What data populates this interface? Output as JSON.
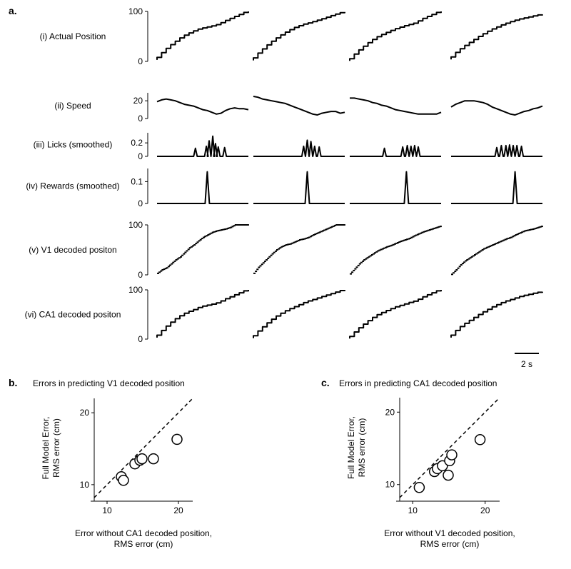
{
  "panel_labels": {
    "a": "a.",
    "b": "b.",
    "c": "c."
  },
  "scale_bar": {
    "label": "2 s",
    "seconds": 2
  },
  "chart_data": [
    {
      "type": "line",
      "id": "a",
      "trials": 4,
      "rows": [
        {
          "key": "position",
          "label": "(i) Actual Position",
          "style": "step",
          "yticks": [
            0,
            100
          ],
          "ylim": [
            0,
            100
          ],
          "series": [
            [
              3,
              13,
              22,
              30,
              37,
              44,
              50,
              55,
              59,
              63,
              66,
              68,
              70,
              72,
              75,
              80,
              84,
              88,
              92,
              96,
              100
            ],
            [
              2,
              12,
              21,
              29,
              37,
              44,
              50,
              56,
              61,
              66,
              70,
              73,
              76,
              78,
              81,
              84,
              87,
              90,
              93,
              96,
              99
            ],
            [
              1,
              10,
              19,
              27,
              34,
              41,
              47,
              52,
              56,
              60,
              64,
              67,
              70,
              73,
              75,
              78,
              84,
              88,
              92,
              96,
              100
            ],
            [
              4,
              14,
              22,
              29,
              35,
              41,
              47,
              53,
              58,
              63,
              67,
              71,
              75,
              78,
              81,
              84,
              86,
              88,
              90,
              92,
              94
            ]
          ]
        },
        {
          "key": "speed",
          "label": "(ii) Speed",
          "style": "line",
          "yticks": [
            0,
            20
          ],
          "ylim": [
            0,
            29
          ],
          "series": [
            [
              19,
              21,
              22,
              21,
              20,
              18,
              16,
              15,
              14,
              12,
              10,
              9,
              7,
              5,
              6,
              9,
              11,
              12,
              11,
              11,
              10
            ],
            [
              25,
              24,
              22,
              21,
              20,
              19,
              18,
              17,
              15,
              13,
              11,
              9,
              7,
              5,
              4,
              6,
              7,
              8,
              8,
              6,
              7
            ],
            [
              23,
              23,
              22,
              21,
              20,
              18,
              17,
              15,
              14,
              12,
              10,
              9,
              8,
              7,
              6,
              5,
              5,
              5,
              5,
              5,
              7
            ],
            [
              13,
              16,
              18,
              20,
              20,
              20,
              19,
              18,
              16,
              13,
              11,
              9,
              7,
              5,
              4,
              6,
              8,
              9,
              11,
              12,
              14
            ]
          ]
        },
        {
          "key": "licks",
          "label": "(iii) Licks (smoothed)",
          "style": "peaks",
          "yticks": [
            0,
            0.2
          ],
          "ylim": [
            0,
            0.35
          ],
          "series": [
            [
              [
                0.42,
                0.12
              ],
              [
                0.54,
                0.15
              ],
              [
                0.57,
                0.23
              ],
              [
                0.61,
                0.3
              ],
              [
                0.64,
                0.19
              ],
              [
                0.67,
                0.14
              ],
              [
                0.74,
                0.13
              ]
            ],
            [
              [
                0.55,
                0.15
              ],
              [
                0.59,
                0.24
              ],
              [
                0.63,
                0.22
              ],
              [
                0.67,
                0.15
              ],
              [
                0.72,
                0.14
              ]
            ],
            [
              [
                0.38,
                0.12
              ],
              [
                0.58,
                0.14
              ],
              [
                0.63,
                0.16
              ],
              [
                0.67,
                0.15
              ],
              [
                0.71,
                0.16
              ],
              [
                0.75,
                0.14
              ]
            ],
            [
              [
                0.5,
                0.13
              ],
              [
                0.55,
                0.16
              ],
              [
                0.6,
                0.16
              ],
              [
                0.64,
                0.17
              ],
              [
                0.68,
                0.16
              ],
              [
                0.72,
                0.16
              ],
              [
                0.77,
                0.15
              ]
            ]
          ]
        },
        {
          "key": "rewards",
          "label": "(iv) Rewards (smoothed)",
          "style": "peaks",
          "yticks": [
            0,
            0.1
          ],
          "ylim": [
            0,
            0.16
          ],
          "series": [
            [
              [
                0.55,
                0.145
              ]
            ],
            [
              [
                0.59,
                0.145
              ]
            ],
            [
              [
                0.62,
                0.145
              ]
            ],
            [
              [
                0.7,
                0.145
              ]
            ]
          ]
        },
        {
          "key": "v1_decoded",
          "label": "(v) V1 decoded positon",
          "style": "scatter",
          "yticks": [
            0,
            100
          ],
          "ylim": [
            0,
            100
          ],
          "series": [
            [
              3,
              10,
              14,
              22,
              30,
              36,
              45,
              54,
              60,
              68,
              75,
              80,
              85,
              88,
              90,
              92,
              95,
              100,
              100,
              100,
              100
            ],
            [
              3,
              15,
              24,
              33,
              42,
              50,
              56,
              60,
              62,
              66,
              70,
              72,
              75,
              80,
              84,
              88,
              92,
              96,
              100,
              100,
              100
            ],
            [
              2,
              12,
              22,
              30,
              36,
              42,
              48,
              52,
              56,
              59,
              63,
              67,
              70,
              73,
              78,
              82,
              86,
              89,
              92,
              95,
              98
            ],
            [
              1,
              10,
              20,
              28,
              34,
              40,
              46,
              52,
              56,
              60,
              64,
              68,
              72,
              75,
              80,
              84,
              88,
              90,
              92,
              95,
              98
            ]
          ]
        },
        {
          "key": "ca1_decoded",
          "label": "(vi) CA1 decoded positon",
          "style": "step",
          "yticks": [
            0,
            100
          ],
          "ylim": [
            0,
            100
          ],
          "series": [
            [
              3,
              13,
              22,
              31,
              38,
              45,
              50,
              55,
              58,
              62,
              66,
              68,
              70,
              72,
              75,
              80,
              84,
              88,
              92,
              96,
              100
            ],
            [
              2,
              12,
              21,
              29,
              37,
              44,
              50,
              55,
              60,
              64,
              68,
              72,
              76,
              79,
              82,
              85,
              88,
              91,
              94,
              97,
              100
            ],
            [
              1,
              10,
              19,
              27,
              34,
              41,
              47,
              52,
              56,
              60,
              64,
              67,
              70,
              73,
              76,
              78,
              84,
              88,
              92,
              96,
              100
            ],
            [
              3,
              13,
              22,
              29,
              35,
              41,
              47,
              53,
              58,
              63,
              68,
              72,
              76,
              79,
              82,
              85,
              88,
              90,
              92,
              94,
              96
            ]
          ]
        }
      ]
    },
    {
      "type": "scatter",
      "id": "b",
      "title": "Errors in predicting V1 decoded position",
      "xlabel": [
        "Error without CA1 decoded position,",
        "RMS error (cm)"
      ],
      "ylabel": [
        "Full Model Error,",
        "RMS error (cm)"
      ],
      "xlim": [
        8.2,
        22
      ],
      "ylim": [
        8.2,
        22
      ],
      "xticks": [
        10,
        20
      ],
      "yticks": [
        10,
        20
      ],
      "diagonal": true,
      "points": [
        {
          "x": 12.0,
          "y": 11.1
        },
        {
          "x": 12.3,
          "y": 10.6
        },
        {
          "x": 13.9,
          "y": 12.9
        },
        {
          "x": 14.6,
          "y": 13.4
        },
        {
          "x": 14.9,
          "y": 13.6
        },
        {
          "x": 16.5,
          "y": 13.6
        },
        {
          "x": 19.8,
          "y": 16.3
        }
      ]
    },
    {
      "type": "scatter",
      "id": "c",
      "title": "Errors in predicting CA1 decoded position",
      "xlabel": [
        "Error without V1 decoded position,",
        "RMS error (cm)"
      ],
      "ylabel": [
        "Full Model Error,",
        "RMS error (cm)"
      ],
      "xlim": [
        8.2,
        22
      ],
      "ylim": [
        8.2,
        22
      ],
      "xticks": [
        10,
        20
      ],
      "yticks": [
        10,
        20
      ],
      "diagonal": true,
      "points": [
        {
          "x": 10.9,
          "y": 9.6
        },
        {
          "x": 13.0,
          "y": 11.8
        },
        {
          "x": 13.4,
          "y": 12.2
        },
        {
          "x": 14.1,
          "y": 12.6
        },
        {
          "x": 14.9,
          "y": 11.3
        },
        {
          "x": 15.1,
          "y": 13.3
        },
        {
          "x": 15.4,
          "y": 14.1
        },
        {
          "x": 19.3,
          "y": 16.2
        }
      ]
    }
  ]
}
